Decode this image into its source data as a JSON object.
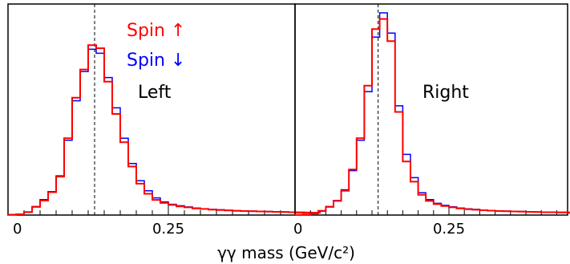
{
  "chart_data": [
    {
      "type": "line",
      "panel_label": "Left",
      "xlim": [
        0,
        0.5
      ],
      "x_bin_edges_start": 0.0,
      "x_bin_width": 0.0125,
      "reference_line_x": 0.135,
      "x_tick_labels": [
        "0",
        "0.25"
      ],
      "x_tick_values": [
        0,
        0.25
      ],
      "legend": {
        "placement": "top",
        "entries": [
          "Spin ↑",
          "Spin ↓"
        ]
      },
      "series": [
        {
          "name": "Spin ↑",
          "color": "#ff0000",
          "values": [
            0.2,
            0.4,
            1.5,
            4.0,
            7.2,
            11.3,
            19.0,
            38.0,
            58.0,
            72.0,
            84.0,
            82.5,
            66.0,
            50.0,
            36.0,
            24.0,
            15.5,
            10.5,
            7.5,
            6.0,
            5.0,
            4.3,
            3.8,
            3.3,
            3.0,
            2.7,
            2.5,
            2.3,
            2.1,
            2.0,
            1.9,
            1.8,
            1.7,
            1.6,
            1.5,
            1.4,
            1.3,
            1.3,
            1.2,
            1.2
          ]
        },
        {
          "name": "Spin ↓",
          "color": "#0000ff",
          "values": [
            0.2,
            0.4,
            1.4,
            4.2,
            7.6,
            11.6,
            19.4,
            37.0,
            56.5,
            71.0,
            82.0,
            80.0,
            68.0,
            53.0,
            38.0,
            25.5,
            17.0,
            12.0,
            8.5,
            6.5,
            5.3,
            4.6,
            4.0,
            3.5,
            3.1,
            2.8,
            2.6,
            2.4,
            2.2,
            2.1,
            2.0,
            1.9,
            1.8,
            1.7,
            1.6,
            1.5,
            1.4,
            1.4,
            1.3,
            1.3
          ]
        }
      ]
    },
    {
      "type": "line",
      "panel_label": "Right",
      "xlim": [
        0,
        0.5
      ],
      "x_bin_edges_start": 0.0,
      "x_bin_width": 0.0125,
      "reference_line_x": 0.135,
      "x_tick_labels": [
        "0",
        "0.25"
      ],
      "x_tick_values": [
        0,
        0.25
      ],
      "series": [
        {
          "name": "Spin ↑",
          "color": "#ff0000",
          "values": [
            0.1,
            0.3,
            0.8,
            2.0,
            4.0,
            7.0,
            12.0,
            22.5,
            38.0,
            64.0,
            92.0,
            97.0,
            86.0,
            51.0,
            26.5,
            16.5,
            10.0,
            7.0,
            5.4,
            4.5,
            3.8,
            3.3,
            2.9,
            2.6,
            2.4,
            2.2,
            2.0,
            1.9,
            1.8,
            1.7,
            1.6,
            1.5,
            1.4,
            1.4,
            1.3,
            1.3,
            1.2,
            1.2,
            1.1,
            1.1
          ]
        },
        {
          "name": "Spin ↓",
          "color": "#0000ff",
          "values": [
            0.1,
            0.3,
            0.9,
            2.2,
            4.2,
            7.2,
            12.5,
            22.0,
            37.0,
            61.0,
            88.0,
            100.0,
            90.0,
            54.0,
            30.0,
            18.5,
            11.0,
            7.6,
            5.8,
            4.8,
            4.1,
            3.5,
            3.1,
            2.8,
            2.5,
            2.3,
            2.1,
            2.0,
            1.9,
            1.8,
            1.7,
            1.6,
            1.5,
            1.5,
            1.4,
            1.4,
            1.3,
            1.3,
            1.2,
            1.2
          ]
        }
      ]
    }
  ],
  "xlabel": "γγ mass (GeV/c²)"
}
